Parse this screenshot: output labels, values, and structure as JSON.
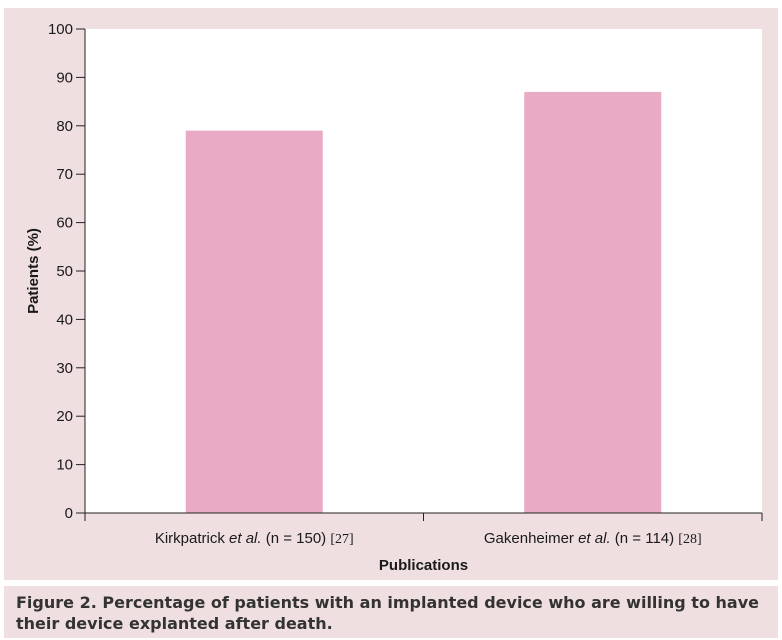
{
  "chart_data": {
    "type": "bar",
    "categories": [
      {
        "name": "Kirkpatrick",
        "emph": "et al.",
        "detail": "(n = 150)",
        "ref": "[27]"
      },
      {
        "name": "Gakenheimer",
        "emph": "et al.",
        "detail": "(n = 114)",
        "ref": "[28]"
      }
    ],
    "values": [
      79,
      87
    ],
    "xlabel": "Publications",
    "ylabel": "Patients (%)",
    "ylim": [
      0,
      100
    ],
    "yticks": [
      0,
      10,
      20,
      30,
      40,
      50,
      60,
      70,
      80,
      90,
      100
    ],
    "grid": false,
    "bar_color": "#e8aac4",
    "plot_background": "#ffffff",
    "panel_background": "#efdfe0"
  },
  "caption": {
    "label": "Figure 2.",
    "text": "Percentage of patients with an implanted device who are willing to have their device explanted after death."
  }
}
